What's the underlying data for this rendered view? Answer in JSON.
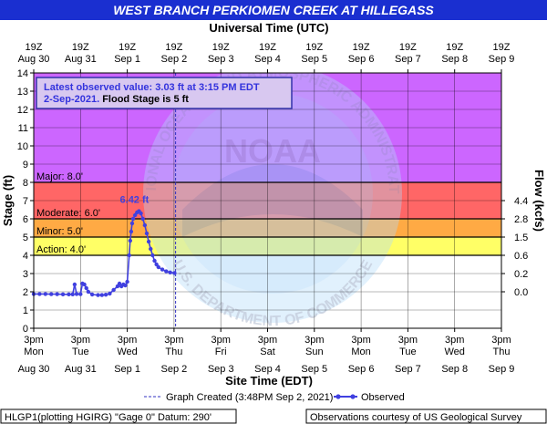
{
  "header": {
    "title": "WEST BRANCH PERKIOMEN CREEK AT HILLEGASS",
    "top_axis_title": "Universal Time (UTC)"
  },
  "chart_data": {
    "type": "line",
    "ylabel": "Stage (ft)",
    "y2label": "Flow (kcfs)",
    "xlabel": "Site Time (EDT)",
    "ylim": [
      0,
      14
    ],
    "y_ticks": [
      0,
      1,
      2,
      3,
      4,
      5,
      6,
      7,
      8,
      9,
      10,
      11,
      12,
      13,
      14
    ],
    "x_range_days": [
      "Aug 30",
      "Sep 9"
    ],
    "bottom_ticks": [
      {
        "time": "3pm",
        "day": "Mon",
        "date": "Aug 30"
      },
      {
        "time": "3pm",
        "day": "Tue",
        "date": "Aug 31"
      },
      {
        "time": "3pm",
        "day": "Wed",
        "date": "Sep 1"
      },
      {
        "time": "3pm",
        "day": "Thu",
        "date": "Sep 2"
      },
      {
        "time": "3pm",
        "day": "Fri",
        "date": "Sep 3"
      },
      {
        "time": "3pm",
        "day": "Sat",
        "date": "Sep 4"
      },
      {
        "time": "3pm",
        "day": "Sun",
        "date": "Sep 5"
      },
      {
        "time": "3pm",
        "day": "Mon",
        "date": "Sep 6"
      },
      {
        "time": "3pm",
        "day": "Tue",
        "date": "Sep 7"
      },
      {
        "time": "3pm",
        "day": "Wed",
        "date": "Sep 8"
      },
      {
        "time": "3pm",
        "day": "Thu",
        "date": "Sep 9"
      }
    ],
    "top_ticks": [
      {
        "time": "19Z",
        "date": "Aug 30"
      },
      {
        "time": "19Z",
        "date": "Aug 31"
      },
      {
        "time": "19Z",
        "date": "Sep 1"
      },
      {
        "time": "19Z",
        "date": "Sep 2"
      },
      {
        "time": "19Z",
        "date": "Sep 3"
      },
      {
        "time": "19Z",
        "date": "Sep 4"
      },
      {
        "time": "19Z",
        "date": "Sep 5"
      },
      {
        "time": "19Z",
        "date": "Sep 6"
      },
      {
        "time": "19Z",
        "date": "Sep 7"
      },
      {
        "time": "19Z",
        "date": "Sep 8"
      },
      {
        "time": "19Z",
        "date": "Sep 9"
      }
    ],
    "flow_ticks": [
      {
        "label": "4.4",
        "stage": 7
      },
      {
        "label": "2.8",
        "stage": 6
      },
      {
        "label": "1.5",
        "stage": 5
      },
      {
        "label": "0.6",
        "stage": 4
      },
      {
        "label": "0.2",
        "stage": 3
      },
      {
        "label": "0.0",
        "stage": 2
      }
    ],
    "flood_categories": [
      {
        "label": "Major: 8.0'",
        "from": 8,
        "to": 14,
        "color": "#cc66ff"
      },
      {
        "label": "Moderate: 6.0'",
        "from": 6,
        "to": 8,
        "color": "#ff6666"
      },
      {
        "label": "Minor: 5.0'",
        "from": 5,
        "to": 6,
        "color": "#ffaa44"
      },
      {
        "label": "Action: 4.0'",
        "from": 4,
        "to": 5,
        "color": "#ffff66"
      }
    ],
    "graph_created_line": "Sep 2 15:48",
    "peak": {
      "label": "6.42 ft",
      "time": "Sep 1 21:00",
      "stage": 6.42
    },
    "series": [
      {
        "name": "Observed",
        "color": "#4040e0",
        "points": [
          [
            "Aug 30 15:00",
            1.88
          ],
          [
            "Aug 30 18:00",
            1.88
          ],
          [
            "Aug 30 21:00",
            1.88
          ],
          [
            "Aug 31 00:00",
            1.87
          ],
          [
            "Aug 31 03:00",
            1.87
          ],
          [
            "Aug 31 06:00",
            1.86
          ],
          [
            "Aug 31 09:00",
            1.86
          ],
          [
            "Aug 31 11:00",
            1.86
          ],
          [
            "Aug 31 12:00",
            2.4
          ],
          [
            "Aug 31 13:00",
            1.88
          ],
          [
            "Aug 31 15:00",
            1.87
          ],
          [
            "Aug 31 16:00",
            2.45
          ],
          [
            "Aug 31 17:00",
            2.4
          ],
          [
            "Aug 31 18:00",
            2.2
          ],
          [
            "Aug 31 19:00",
            2.0
          ],
          [
            "Aug 31 21:00",
            1.85
          ],
          [
            "Sep 1 00:00",
            1.82
          ],
          [
            "Sep 1 02:00",
            1.82
          ],
          [
            "Sep 1 04:00",
            1.84
          ],
          [
            "Sep 1 06:00",
            1.9
          ],
          [
            "Sep 1 08:00",
            2.1
          ],
          [
            "Sep 1 10:00",
            2.3
          ],
          [
            "Sep 1 11:00",
            2.45
          ],
          [
            "Sep 1 12:00",
            2.3
          ],
          [
            "Sep 1 13:00",
            2.4
          ],
          [
            "Sep 1 14:00",
            2.35
          ],
          [
            "Sep 1 15:00",
            2.55
          ],
          [
            "Sep 1 16:00",
            4.0
          ],
          [
            "Sep 1 16:30",
            4.8
          ],
          [
            "Sep 1 17:00",
            5.3
          ],
          [
            "Sep 1 17:30",
            5.75
          ],
          [
            "Sep 1 18:00",
            6.0
          ],
          [
            "Sep 1 19:00",
            6.2
          ],
          [
            "Sep 1 20:00",
            6.35
          ],
          [
            "Sep 1 21:00",
            6.42
          ],
          [
            "Sep 1 22:00",
            6.3
          ],
          [
            "Sep 1 23:00",
            6.0
          ],
          [
            "Sep 2 00:00",
            5.65
          ],
          [
            "Sep 2 01:00",
            5.2
          ],
          [
            "Sep 2 02:00",
            4.75
          ],
          [
            "Sep 2 03:00",
            4.35
          ],
          [
            "Sep 2 04:00",
            4.0
          ],
          [
            "Sep 2 05:00",
            3.7
          ],
          [
            "Sep 2 06:00",
            3.5
          ],
          [
            "Sep 2 07:00",
            3.35
          ],
          [
            "Sep 2 09:00",
            3.22
          ],
          [
            "Sep 2 11:00",
            3.12
          ],
          [
            "Sep 2 13:00",
            3.06
          ],
          [
            "Sep 2 15:15",
            3.03
          ]
        ]
      }
    ]
  },
  "annotation": {
    "line1": "Latest observed value: 3.03 ft at 3:15 PM EDT",
    "line2a": "2-Sep-2021.",
    "line2b": " Flood Stage is 5 ft"
  },
  "legend": {
    "created": "Graph Created (3:48PM Sep 2, 2021)",
    "observed": "Observed"
  },
  "footer": {
    "left": "HLGP1(plotting HGIRG) \"Gage 0\" Datum: 290'",
    "right": "Observations courtesy of US Geological Survey"
  },
  "watermark": {
    "center_text": "NOAA",
    "ring_top": "NATIONAL OCEANIC AND ATMOSPHERIC ADMINISTRATION",
    "ring_bottom": "U.S. DEPARTMENT OF COMMERCE"
  },
  "colors": {
    "title_bar": "#1a2fd0",
    "grid": "#000000",
    "observed": "#4040e0",
    "annotation_text": "#3333dd",
    "annotation_bg": "#d8c8f0"
  }
}
